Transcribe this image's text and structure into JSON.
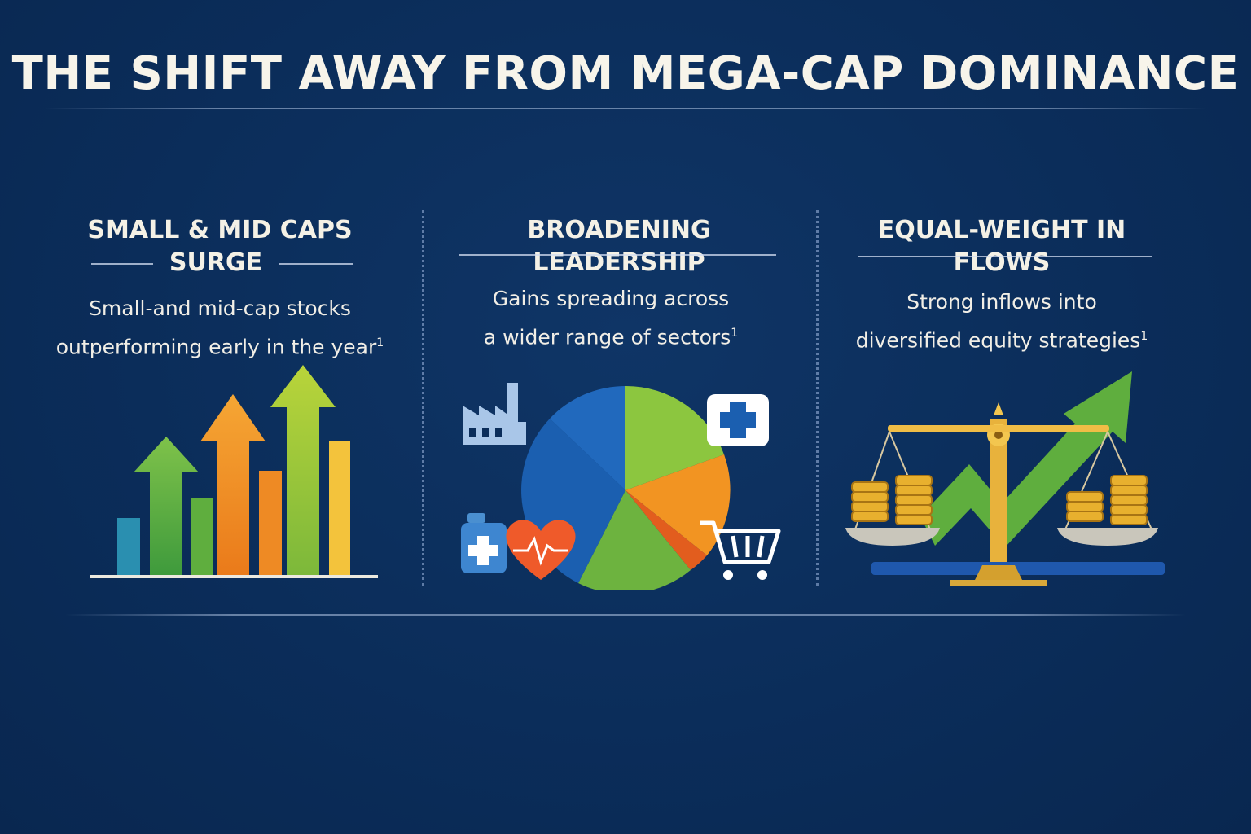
{
  "title": "THE SHIFT AWAY FROM MEGA-CAP DOMINANCE",
  "panels": [
    {
      "heading_line1": "SMALL & MID CAPS",
      "heading_line2": "SURGE",
      "desc_line1": "Small-and mid-cap stocks",
      "desc_line2": "outperforming early in the year",
      "footnote": "1",
      "icon": "rising-bars-arrows-icon"
    },
    {
      "heading_line1": "BROADENING LEADERSHIP",
      "desc_line1": "Gains spreading across",
      "desc_line2": "a wider range of sectors",
      "footnote": "1",
      "icon": "sector-pie-icon"
    },
    {
      "heading_line1": "EQUAL-WEIGHT IN FLOWS",
      "desc_line1": "Strong inflows into",
      "desc_line2": "diversified equity strategies",
      "footnote": "1",
      "icon": "balance-scale-coins-icon"
    }
  ],
  "colors": {
    "background": "#0b2d5a",
    "text": "#f4f1e6",
    "green": "#6db33f",
    "orange": "#f08c1e",
    "blue": "#1a5fb0",
    "gold": "#e3b33a"
  }
}
